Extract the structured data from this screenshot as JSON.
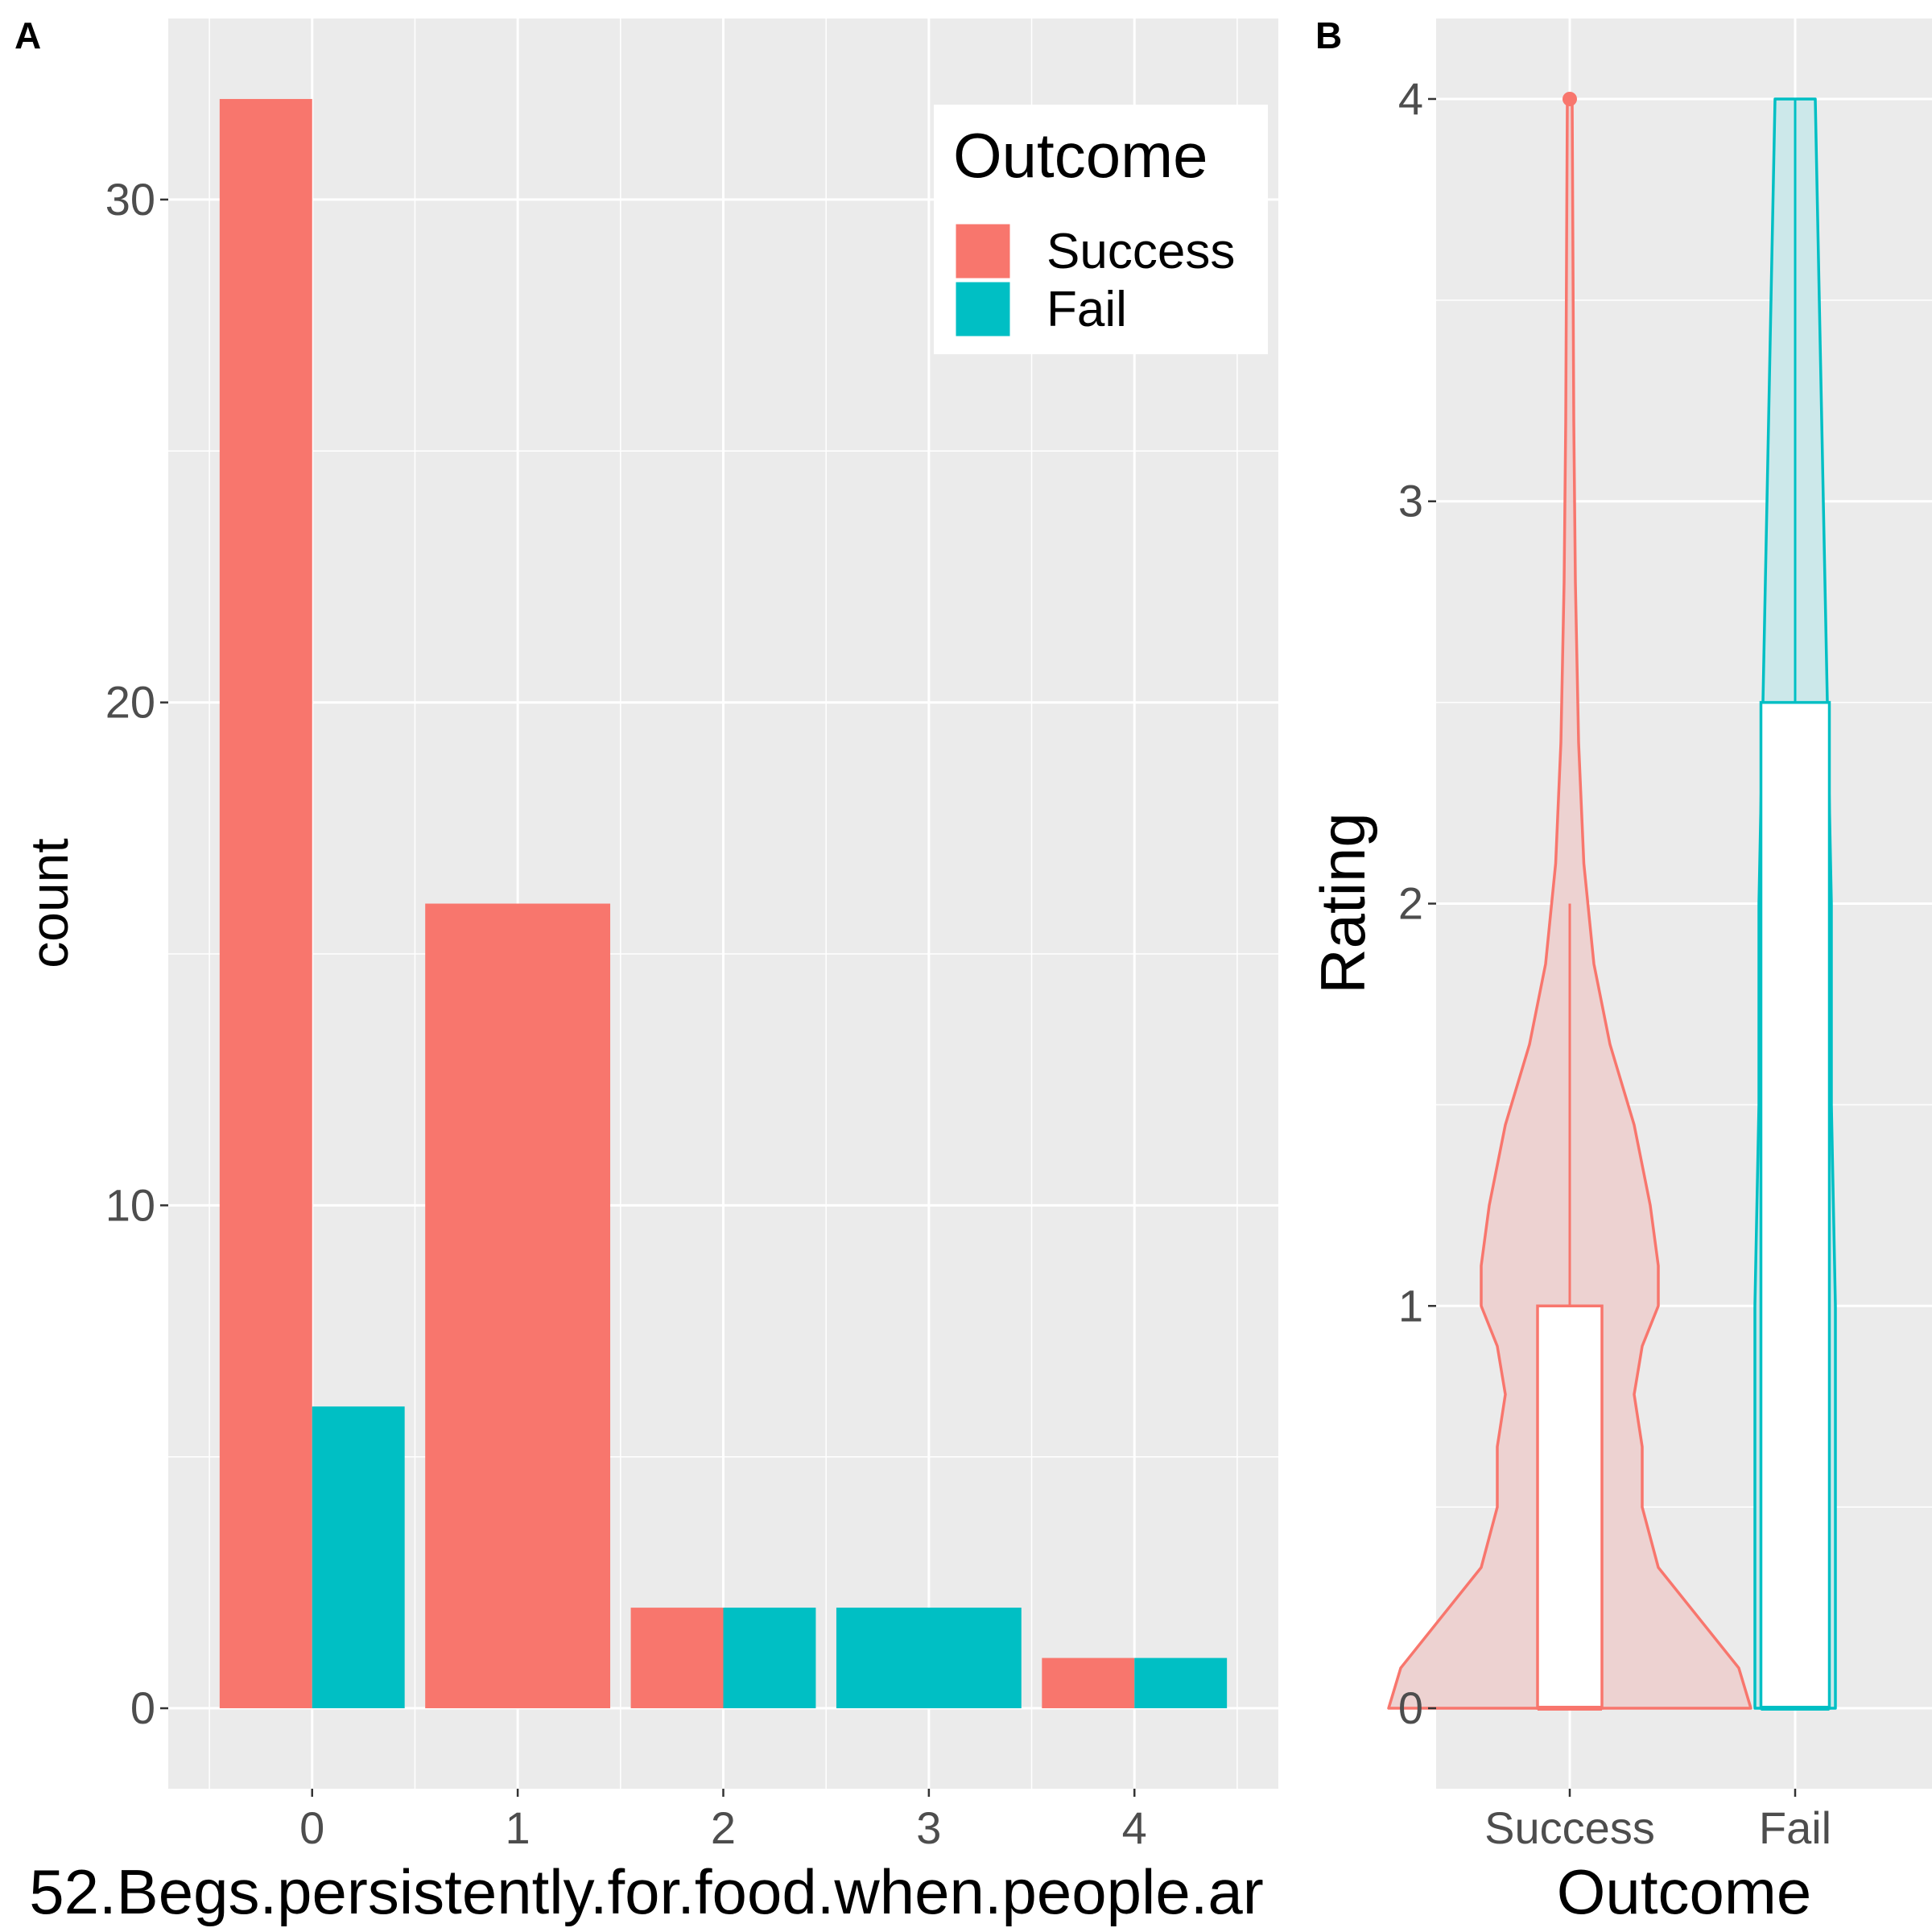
{
  "chart_data": [
    {
      "panel": "A",
      "type": "bar",
      "layout": "dodge",
      "xlabel": "52.Begs.persistently.for.food.when.people.ar",
      "ylabel": "count",
      "categories": [
        "0",
        "1",
        "2",
        "3",
        "4"
      ],
      "series": [
        {
          "name": "Success",
          "values": [
            32,
            16,
            2,
            0,
            1
          ]
        },
        {
          "name": "Fail",
          "values": [
            6,
            0,
            2,
            2,
            1
          ]
        }
      ],
      "ylim": [
        -1.6,
        33.6
      ],
      "xticks": [
        "0",
        "1",
        "2",
        "3",
        "4"
      ],
      "yticks": [
        "0",
        "10",
        "20",
        "30"
      ],
      "legend": {
        "title": "Outcome",
        "entries": [
          "Success",
          "Fail"
        ],
        "position": "top-right"
      },
      "colors": {
        "Success": "#F8766D",
        "Fail": "#00BFC4",
        "panel_bg": "#EBEBEB",
        "grid": "#FFFFFF"
      },
      "grid": true
    },
    {
      "panel": "B",
      "type": "violin+box",
      "xlabel": "Outcome",
      "ylabel": "Rating",
      "categories": [
        "Success",
        "Fail"
      ],
      "ylim": [
        -0.2,
        4.2
      ],
      "yticks": [
        "0",
        "1",
        "2",
        "3",
        "4"
      ],
      "groups": [
        {
          "name": "Success",
          "box": {
            "min": 0,
            "q1": 0,
            "median": 0,
            "q3": 1,
            "upper_whisker": 2,
            "outliers": [
              4
            ]
          },
          "violin_y": [
            0,
            0.1,
            0.2,
            0.35,
            0.5,
            0.65,
            0.78,
            0.9,
            1.0,
            1.1,
            1.25,
            1.45,
            1.65,
            1.85,
            2.1,
            2.4,
            2.8,
            3.2,
            3.6,
            4.0
          ],
          "violin_halfwidth": [
            0.45,
            0.42,
            0.34,
            0.22,
            0.18,
            0.18,
            0.16,
            0.18,
            0.22,
            0.22,
            0.2,
            0.16,
            0.1,
            0.06,
            0.035,
            0.022,
            0.014,
            0.01,
            0.008,
            0.006
          ]
        },
        {
          "name": "Fail",
          "box": {
            "min": 0,
            "q1": 0,
            "median": 0,
            "q3": 2.5,
            "upper_whisker": 4,
            "outliers": []
          },
          "violin_y": [
            0,
            0.5,
            1.0,
            1.5,
            2.0,
            2.5,
            3.0,
            3.5,
            4.0
          ],
          "violin_halfwidth": [
            0.1,
            0.1,
            0.1,
            0.09,
            0.09,
            0.08,
            0.07,
            0.06,
            0.05
          ]
        }
      ],
      "colors": {
        "Success": "#F8766D",
        "Fail": "#00BFC4",
        "Success_fill": "#EDD2D1",
        "Fail_fill": "#CCE8EA",
        "panel_bg": "#EBEBEB",
        "grid": "#FFFFFF"
      },
      "grid": true
    }
  ]
}
